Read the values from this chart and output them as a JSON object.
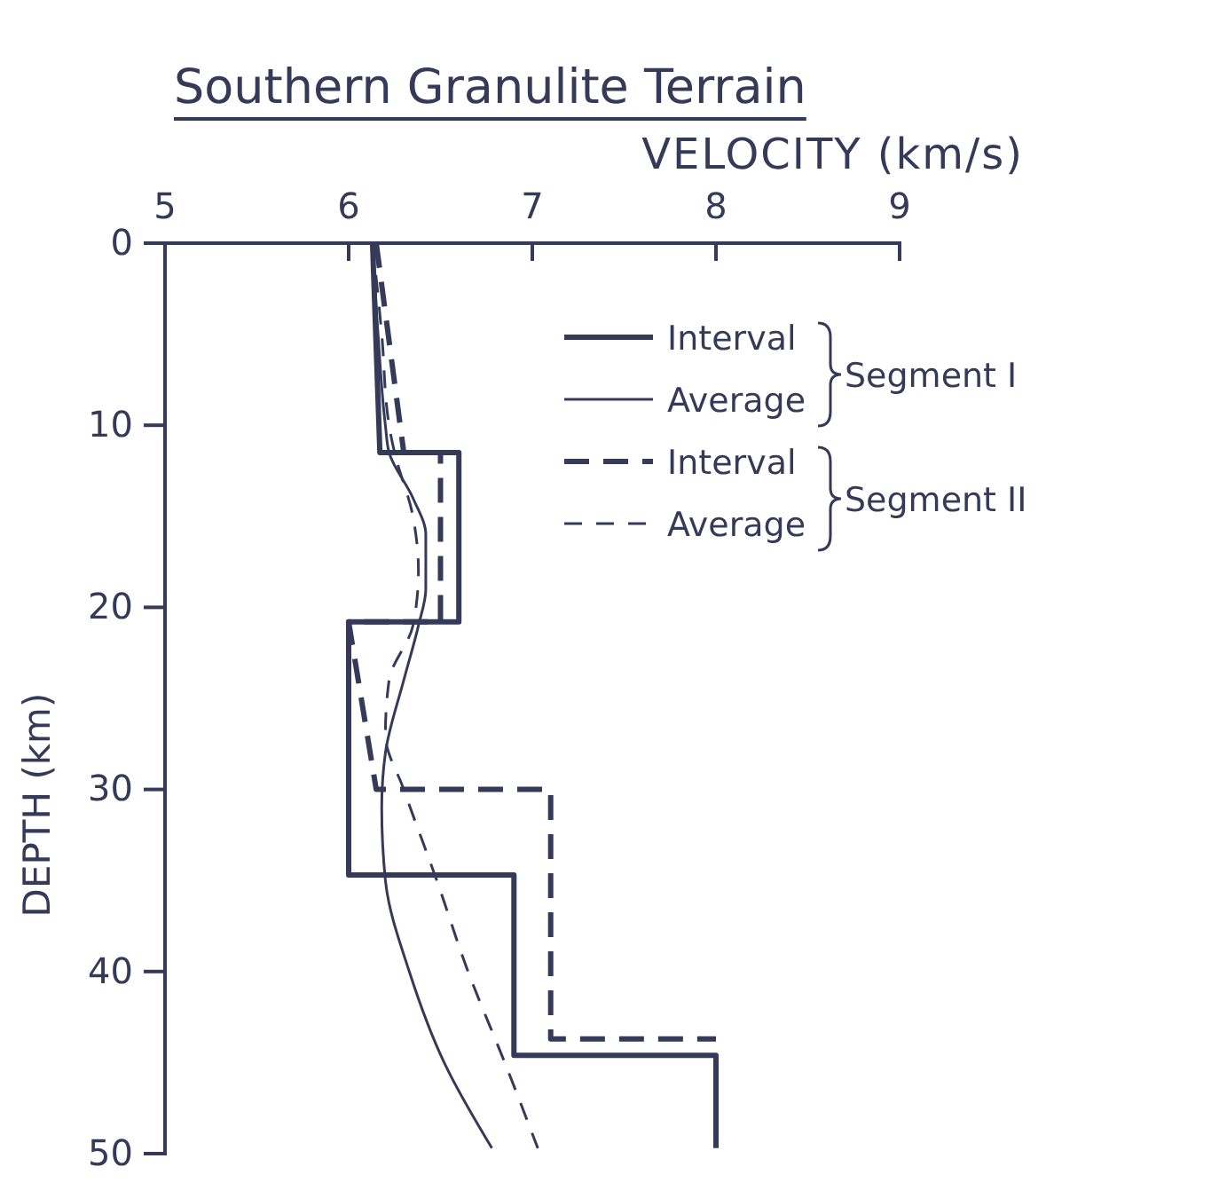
{
  "chart_data": {
    "type": "line",
    "title": "Southern Granulite Terrain",
    "xlabel": "VELOCITY (km/s)",
    "ylabel": "DEPTH (km)",
    "xlim": [
      5,
      9
    ],
    "xticks": [
      5,
      6,
      7,
      8,
      9
    ],
    "ylim": [
      50,
      0
    ],
    "yticks": [
      0,
      10,
      20,
      30,
      40,
      50
    ],
    "legend": "top right",
    "grid": false,
    "annotations": [
      "Segment I",
      "Segment II"
    ],
    "series": [
      {
        "name": "Interval",
        "color": "#353a58",
        "line_style": "solid",
        "x": [
          6.13,
          6.17,
          6.6,
          6.6,
          6.0,
          6.0,
          6.9,
          6.9,
          8.0,
          8.0
        ],
        "values": [
          0,
          11.5,
          11.5,
          20.8,
          20.8,
          34.7,
          34.7,
          44.6,
          44.6,
          49.7
        ]
      },
      {
        "name": "Average",
        "color": "#353a58",
        "line_style": "solid",
        "x": [
          6.13,
          6.16,
          6.2,
          6.22,
          6.35,
          6.42,
          6.42,
          6.38,
          6.3,
          6.2,
          6.18,
          6.2,
          6.33,
          6.52,
          6.78
        ],
        "values": [
          0,
          5,
          10,
          11.5,
          14,
          16,
          19,
          21,
          24,
          28,
          31,
          35,
          40,
          45,
          49.7
        ]
      },
      {
        "name": "Interval",
        "color": "#353a58",
        "line_style": "dashed",
        "x": [
          6.15,
          6.3,
          6.5,
          6.5,
          6.0,
          6.15,
          7.1,
          7.1,
          8.0
        ],
        "values": [
          0,
          11.5,
          11.5,
          20.8,
          20.8,
          30,
          30,
          43.7,
          43.7
        ]
      },
      {
        "name": "Average",
        "color": "#353a58",
        "line_style": "dashed",
        "x": [
          6.13,
          6.18,
          6.22,
          6.25,
          6.35,
          6.38,
          6.35,
          6.22,
          6.2,
          6.3,
          6.48,
          6.65,
          6.85,
          7.03
        ],
        "values": [
          0,
          5,
          10,
          11.5,
          15,
          18,
          21,
          24,
          27,
          30,
          35,
          40,
          45,
          49.7
        ]
      }
    ]
  }
}
